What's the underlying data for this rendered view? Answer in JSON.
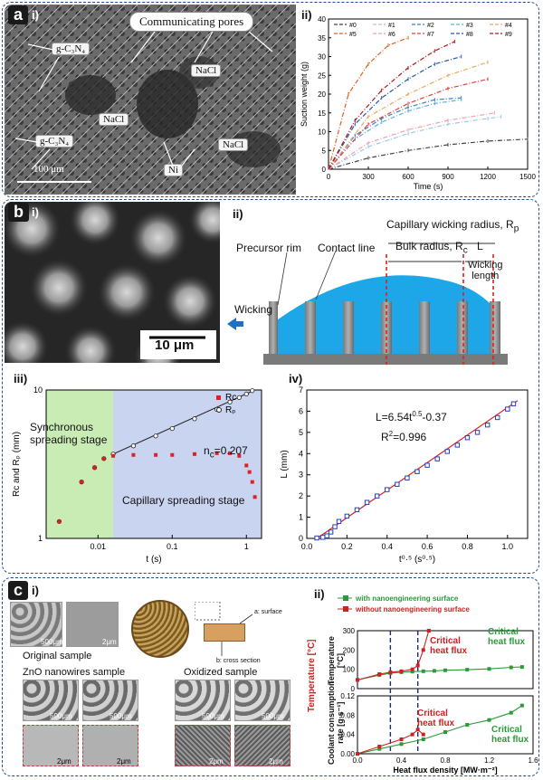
{
  "panel_a": {
    "label": "a",
    "sub_i": "i)",
    "sub_ii": "ii)",
    "sem_labels": {
      "communicating": "Communicating pores",
      "gcn1": "g-C₃N₄",
      "gcn2": "g-C₃N₄",
      "nacl1": "NaCl",
      "nacl2": "NaCl",
      "nacl3": "NaCl",
      "ni": "Ni",
      "scale": "100 μm"
    }
  },
  "panel_b": {
    "label": "b",
    "sub_i": "i)",
    "sub_ii": "ii)",
    "sub_iii": "iii)",
    "sub_iv": "iv)",
    "scale": "10 μm",
    "schematic": {
      "capillary": "Capillary wicking radius, R",
      "capillary_sub": "p",
      "bulk": "Bulk radius, R",
      "bulk_sub": "c",
      "L": "L",
      "wicking_length_1": "Wicking",
      "wicking_length_2": "length",
      "precursor": "Precursor rim",
      "contact": "Contact line",
      "wicking": "Wicking"
    },
    "iii_text": {
      "sync_1": "Synchronous",
      "sync_2": "spreading stage",
      "cap": "Capillary spreading stage",
      "nc": "n",
      "nc_sub": "c",
      "nc_val": "=0.207"
    },
    "iv_text": {
      "eq": "L=6.54t",
      "eq_sup": "0.5",
      "eq_tail": "-0.37",
      "r2": "R",
      "r2_sup": "2",
      "r2_tail": "=0.996"
    }
  },
  "panel_c": {
    "label": "c",
    "sub_i": "i)",
    "sub_ii": "ii)",
    "original": "Original sample",
    "zno": "ZnO nanowires sample",
    "oxidized": "Oxidized sample",
    "surface": "a: surface",
    "cross": "b: cross section",
    "scales": [
      "500μm",
      "2μm",
      "500μm",
      "500μm",
      "2μm",
      "2μm",
      "500μm",
      "500μm",
      "2μm",
      "2μm"
    ],
    "ii_text": {
      "crit1_1": "Critical",
      "crit1_2": "heat flux",
      "crit2_1": "Critical",
      "crit2_2": "heat flux",
      "crit3_1": "Critical",
      "crit3_2": "heat flux",
      "crit4_1": "Critical",
      "crit4_2": "heat flux",
      "temp_left": "Temperature [°C]",
      "temp_inner_1": "Temperature",
      "temp_inner_2": "[°C]",
      "coolant_1": "Coolant consumption",
      "coolant_2": "rate [g·s⁻¹]"
    }
  },
  "chart_data": [
    {
      "id": "a-ii",
      "type": "line",
      "xlabel": "Time (s)",
      "ylabel": "Suction weight (g)",
      "xlim": [
        0,
        1500
      ],
      "ylim": [
        0,
        40
      ],
      "xticks": [
        0,
        300,
        600,
        900,
        1200,
        1500
      ],
      "yticks": [
        0,
        5,
        10,
        15,
        20,
        25,
        30,
        35,
        40
      ],
      "legend_placement": "top",
      "series": [
        {
          "name": "#0",
          "color": "#444444",
          "x": [
            0,
            300,
            600,
            900,
            1200,
            1500
          ],
          "values": [
            0,
            3,
            5,
            6.5,
            7.5,
            8
          ]
        },
        {
          "name": "#1",
          "color": "#9ec9e8",
          "x": [
            0,
            300,
            600,
            900,
            1200,
            1300
          ],
          "values": [
            0,
            6,
            9.5,
            12,
            13.5,
            14
          ]
        },
        {
          "name": "#2",
          "color": "#3a7fc4",
          "x": [
            0,
            200,
            400,
            600,
            800,
            1000
          ],
          "values": [
            0,
            9,
            13.5,
            16.5,
            18.5,
            19
          ]
        },
        {
          "name": "#3",
          "color": "#5ab4e4",
          "x": [
            0,
            200,
            400,
            600,
            800,
            1000
          ],
          "values": [
            0,
            8,
            12.5,
            15.5,
            17.5,
            18.5
          ]
        },
        {
          "name": "#4",
          "color": "#f0a860",
          "x": [
            0,
            300,
            600,
            900,
            1200
          ],
          "values": [
            0,
            14,
            20,
            25,
            28.5
          ]
        },
        {
          "name": "#5",
          "color": "#e06020",
          "x": [
            0,
            150,
            300,
            450,
            600
          ],
          "values": [
            0,
            20,
            28,
            33,
            35
          ]
        },
        {
          "name": "#6",
          "color": "#f2a0b0",
          "x": [
            0,
            300,
            600,
            900,
            1250
          ],
          "values": [
            0,
            7,
            10.5,
            13,
            15
          ]
        },
        {
          "name": "#7",
          "color": "#e04040",
          "x": [
            0,
            300,
            600,
            900,
            1200
          ],
          "values": [
            0,
            12,
            17.5,
            21.5,
            24
          ]
        },
        {
          "name": "#8",
          "color": "#2858a8",
          "x": [
            0,
            200,
            400,
            600,
            800,
            1000
          ],
          "values": [
            0,
            12,
            19,
            24,
            28,
            30
          ]
        },
        {
          "name": "#9",
          "color": "#b01820",
          "x": [
            0,
            200,
            400,
            600,
            800,
            950
          ],
          "values": [
            0,
            13,
            21,
            27,
            31.5,
            34
          ]
        }
      ]
    },
    {
      "id": "b-iii",
      "type": "scatter",
      "xlabel": "t (s)",
      "ylabel": "Rᴄ and Rₚ (mm)",
      "xscale": "log",
      "yscale": "log",
      "xlim": [
        0.002,
        1.6
      ],
      "ylim": [
        1,
        10
      ],
      "xticks": [
        0.01,
        0.1,
        1
      ],
      "yticks": [
        1,
        10
      ],
      "legend_placement": "top-right",
      "series": [
        {
          "name": "Rᴄ",
          "color": "#e02020",
          "x": [
            0.003,
            0.006,
            0.009,
            0.012,
            0.016,
            0.03,
            0.06,
            0.1,
            0.2,
            0.4,
            0.6,
            0.8,
            1.0,
            1.1,
            1.2,
            1.3
          ],
          "values": [
            1.3,
            2.4,
            3.0,
            3.45,
            3.6,
            3.65,
            3.65,
            3.65,
            3.7,
            3.75,
            3.75,
            3.6,
            3.1,
            2.8,
            2.4,
            1.9
          ]
        },
        {
          "name": "Rₚ",
          "color": "#222222",
          "x": [
            0.003,
            0.006,
            0.009,
            0.012,
            0.016,
            0.03,
            0.06,
            0.1,
            0.2,
            0.4,
            0.6,
            0.8,
            1.0,
            1.2
          ],
          "values": [
            1.3,
            2.4,
            3.0,
            3.45,
            3.7,
            4.2,
            4.9,
            5.5,
            6.4,
            7.4,
            8.3,
            8.9,
            9.4,
            9.9
          ]
        }
      ]
    },
    {
      "id": "b-iv",
      "type": "scatter",
      "xlabel": "t⁰·⁵ (s⁰·⁵)",
      "ylabel": "L (mm)",
      "xlim": [
        0,
        1.1
      ],
      "ylim": [
        0,
        7
      ],
      "xticks": [
        0.0,
        0.2,
        0.4,
        0.6,
        0.8,
        1.0
      ],
      "yticks": [
        0,
        1,
        2,
        3,
        4,
        5,
        6,
        7
      ],
      "series": [
        {
          "name": "data",
          "color": "#2040c0",
          "x": [
            0.05,
            0.08,
            0.1,
            0.12,
            0.14,
            0.16,
            0.2,
            0.25,
            0.3,
            0.35,
            0.4,
            0.45,
            0.5,
            0.55,
            0.6,
            0.65,
            0.7,
            0.75,
            0.8,
            0.85,
            0.9,
            0.95,
            1.0,
            1.03
          ],
          "values": [
            0.02,
            0.05,
            0.12,
            0.3,
            0.55,
            0.8,
            1.05,
            1.35,
            1.7,
            2.0,
            2.3,
            2.55,
            2.85,
            3.15,
            3.45,
            3.75,
            4.1,
            4.4,
            4.75,
            5.0,
            5.35,
            5.7,
            6.1,
            6.35
          ]
        },
        {
          "name": "fit",
          "color": "#e02020",
          "x": [
            0.05,
            1.05
          ],
          "values": [
            -0.04,
            6.5
          ]
        }
      ]
    },
    {
      "id": "c-ii",
      "type": "line",
      "xlabel": "Heat flux density [MW·m⁻²]",
      "xlim": [
        0,
        1.6
      ],
      "xticks": [
        0.0,
        0.4,
        0.8,
        1.2,
        1.6
      ],
      "legend_placement": "top",
      "legend": [
        "with nanoengineering surface",
        "without nanoengineering surface"
      ],
      "top_ylim": [
        0,
        300
      ],
      "top_yticks": [
        0,
        100,
        200,
        300
      ],
      "bottom_ylim": [
        0,
        0.12
      ],
      "bottom_yticks": [
        0.0,
        0.04,
        0.08,
        0.12
      ],
      "critical_lines_x": [
        0.3,
        0.55
      ],
      "series": [
        {
          "name": "with nanoengineering surface",
          "panel": "top",
          "color": "#2a9a3a",
          "x": [
            0.0,
            0.2,
            0.3,
            0.4,
            0.5,
            0.6,
            0.7,
            0.8,
            1.0,
            1.2,
            1.4,
            1.5
          ],
          "values": [
            45,
            70,
            80,
            85,
            88,
            90,
            92,
            95,
            98,
            102,
            110,
            112
          ]
        },
        {
          "name": "without nanoengineering surface",
          "panel": "top",
          "color": "#d02020",
          "x": [
            0.0,
            0.2,
            0.3,
            0.4,
            0.5,
            0.55,
            0.6,
            0.65
          ],
          "values": [
            45,
            75,
            85,
            90,
            100,
            120,
            200,
            300
          ]
        },
        {
          "name": "with nanoengineering surface",
          "panel": "bottom",
          "color": "#2a9a3a",
          "x": [
            0.0,
            0.2,
            0.4,
            0.6,
            0.8,
            1.0,
            1.2,
            1.4,
            1.5
          ],
          "values": [
            0.0,
            0.01,
            0.02,
            0.03,
            0.045,
            0.06,
            0.07,
            0.085,
            0.1
          ]
        },
        {
          "name": "without nanoengineering surface",
          "panel": "bottom",
          "color": "#d02020",
          "x": [
            0.0,
            0.2,
            0.4,
            0.5,
            0.55,
            0.6
          ],
          "values": [
            0.0,
            0.015,
            0.03,
            0.04,
            0.05,
            0.04
          ]
        }
      ]
    }
  ]
}
